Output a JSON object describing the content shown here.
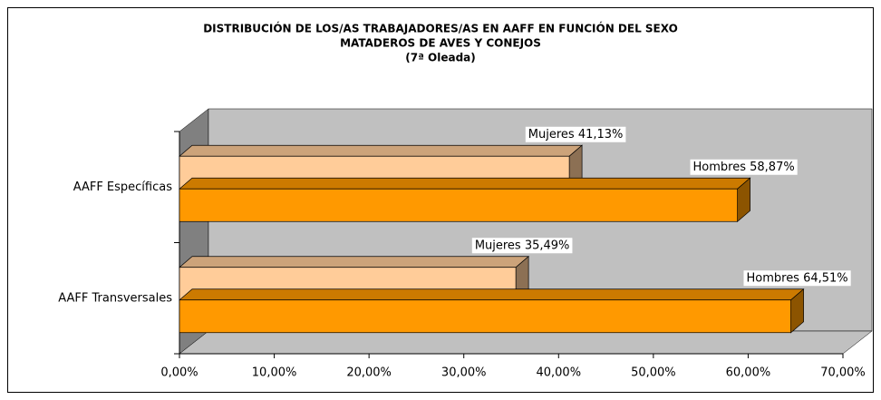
{
  "chart_data": {
    "type": "bar3d_horizontal",
    "title": [
      "DISTRIBUCIÓN DE LOS/AS TRABAJADORES/AS EN AAFF EN FUNCIÓN DEL SEXO",
      "MATADEROS DE AVES Y CONEJOS",
      "(7ª Oleada)"
    ],
    "categories": [
      "AAFF Específicas",
      "AAFF Transversales"
    ],
    "series": [
      {
        "name": "Mujeres",
        "color": "#FFCC99",
        "values": [
          41.13,
          35.49
        ],
        "value_labels": [
          "Mujeres 41,13%",
          "Mujeres 35,49%"
        ]
      },
      {
        "name": "Hombres",
        "color": "#FF9900",
        "values": [
          58.87,
          64.51
        ],
        "value_labels": [
          "Hombres 58,87%",
          "Hombres 64,51%"
        ]
      }
    ],
    "xlim": [
      0,
      70
    ],
    "xticks": [
      {
        "value": 0,
        "label": "0,00%"
      },
      {
        "value": 10,
        "label": "10,00%"
      },
      {
        "value": 20,
        "label": "20,00%"
      },
      {
        "value": 30,
        "label": "30,00%"
      },
      {
        "value": 40,
        "label": "40,00%"
      },
      {
        "value": 50,
        "label": "50,00%"
      },
      {
        "value": 60,
        "label": "60,00%"
      },
      {
        "value": 70,
        "label": "70,00%"
      }
    ]
  }
}
